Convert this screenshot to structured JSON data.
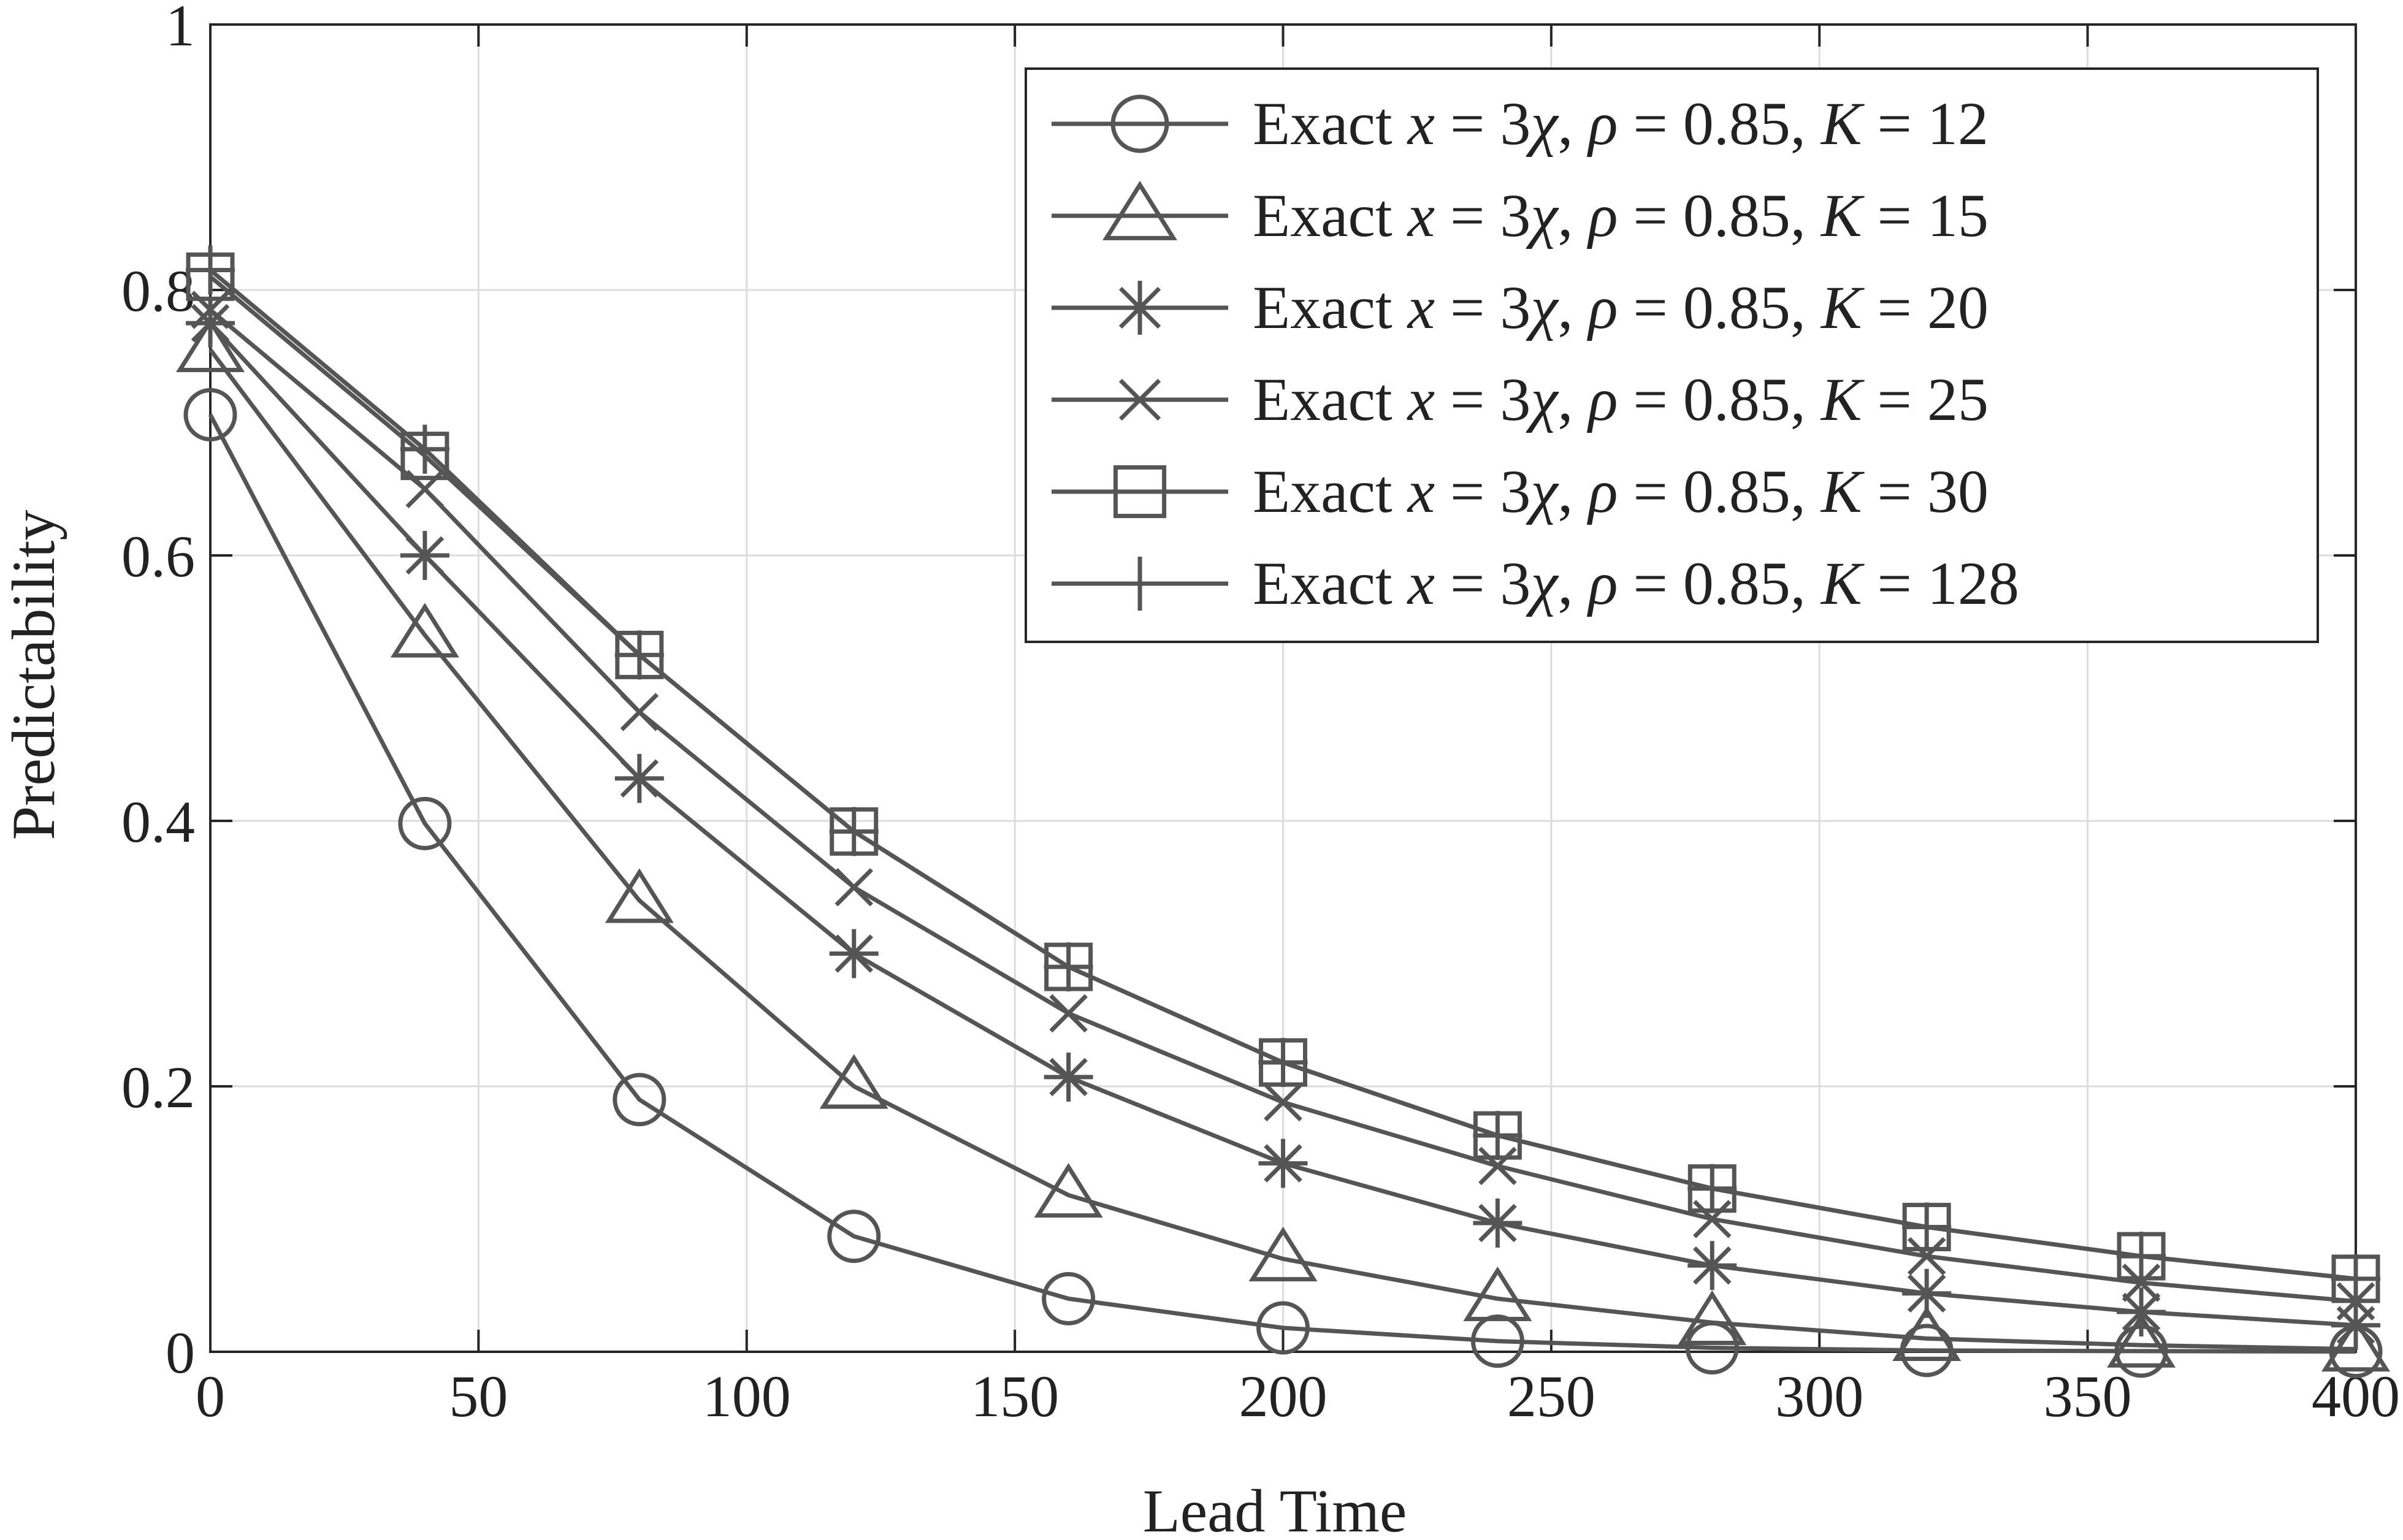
{
  "chart_data": {
    "type": "line",
    "title": "",
    "xlabel": "Lead Time",
    "ylabel": "Predictability",
    "xlim": [
      0,
      400
    ],
    "ylim": [
      0,
      1
    ],
    "xticks": [
      0,
      50,
      100,
      150,
      200,
      250,
      300,
      350,
      400
    ],
    "yticks": [
      0,
      0.2,
      0.4,
      0.6,
      0.8,
      1
    ],
    "xtick_labels": [
      "0",
      "50",
      "100",
      "150",
      "200",
      "250",
      "300",
      "350",
      "400"
    ],
    "ytick_labels": [
      "0",
      "0.2",
      "0.4",
      "0.6",
      "0.8",
      "1"
    ],
    "grid": true,
    "legend_position": "top-right",
    "line_color": "#555555",
    "x": [
      0,
      40,
      80,
      120,
      160,
      200,
      240,
      280,
      320,
      360,
      400
    ],
    "series": [
      {
        "name": "Exact x = 3χ, ρ = 0.85, K = 12",
        "legend_parts": {
          "prefix": "Exact ",
          "var": "x",
          "eq1": " = 3",
          "chi": "χ",
          "sep1": ", ",
          "rho": "ρ",
          "eq2": " = 0.85, ",
          "k": "K",
          "eq3": " = 12"
        },
        "marker": "circle",
        "values": [
          0.706,
          0.398,
          0.19,
          0.087,
          0.04,
          0.018,
          0.008,
          0.003,
          0.001,
          0.0005,
          0.0002
        ]
      },
      {
        "name": "Exact x = 3χ, ρ = 0.85, K = 15",
        "legend_parts": {
          "prefix": "Exact ",
          "var": "x",
          "eq1": " = 3",
          "chi": "χ",
          "sep1": ", ",
          "rho": "ρ",
          "eq2": " = 0.85, ",
          "k": "K",
          "eq3": " = 15"
        },
        "marker": "triangle",
        "values": [
          0.755,
          0.54,
          0.34,
          0.2,
          0.118,
          0.07,
          0.04,
          0.022,
          0.01,
          0.005,
          0.002
        ]
      },
      {
        "name": "Exact x = 3χ, ρ = 0.85, K = 20",
        "legend_parts": {
          "prefix": "Exact ",
          "var": "x",
          "eq1": " = 3",
          "chi": "χ",
          "sep1": ", ",
          "rho": "ρ",
          "eq2": " = 0.85, ",
          "k": "K",
          "eq3": " = 20"
        },
        "marker": "asterisk",
        "values": [
          0.775,
          0.6,
          0.432,
          0.3,
          0.207,
          0.142,
          0.097,
          0.065,
          0.044,
          0.03,
          0.02
        ]
      },
      {
        "name": "Exact x = 3χ, ρ = 0.85, K = 25",
        "legend_parts": {
          "prefix": "Exact ",
          "var": "x",
          "eq1": " = 3",
          "chi": "χ",
          "sep1": ", ",
          "rho": "ρ",
          "eq2": " = 0.85, ",
          "k": "K",
          "eq3": " = 25"
        },
        "marker": "x",
        "values": [
          0.785,
          0.65,
          0.482,
          0.35,
          0.255,
          0.188,
          0.14,
          0.1,
          0.072,
          0.052,
          0.038
        ]
      },
      {
        "name": "Exact x = 3χ, ρ = 0.85, K = 30",
        "legend_parts": {
          "prefix": "Exact ",
          "var": "x",
          "eq1": " = 3",
          "chi": "χ",
          "sep1": ", ",
          "rho": "ρ",
          "eq2": " = 0.85, ",
          "k": "K",
          "eq3": " = 30"
        },
        "marker": "square",
        "values": [
          0.81,
          0.675,
          0.525,
          0.392,
          0.29,
          0.218,
          0.163,
          0.123,
          0.094,
          0.072,
          0.055
        ]
      },
      {
        "name": "Exact x = 3χ, ρ = 0.85, K = 128",
        "legend_parts": {
          "prefix": "Exact ",
          "var": "x",
          "eq1": " = 3",
          "chi": "χ",
          "sep1": ", ",
          "rho": "ρ",
          "eq2": " = 0.85, ",
          "k": "K",
          "eq3": " = 128"
        },
        "marker": "plus",
        "values": [
          0.815,
          0.68,
          0.525,
          0.392,
          0.29,
          0.218,
          0.163,
          0.123,
          0.094,
          0.072,
          0.055
        ]
      }
    ]
  }
}
